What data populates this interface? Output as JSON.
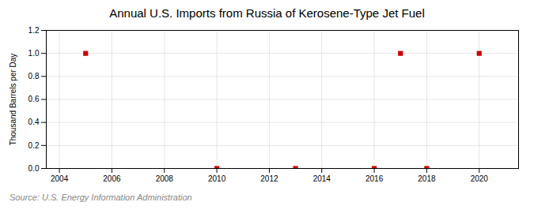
{
  "chart_data": {
    "type": "scatter",
    "title": "Annual U.S. Imports from Russia of Kerosene-Type Jet Fuel",
    "ylabel": "Thousand Barrels per Day",
    "annotation": "Source: U.S. Energy Information Administration",
    "x": [
      2005,
      2010,
      2013,
      2016,
      2017,
      2018,
      2020
    ],
    "values": [
      1.0,
      0.0,
      0.0,
      0.0,
      1.0,
      0.0,
      1.0
    ],
    "color": "#cc0000",
    "marker": "square",
    "xlim": [
      2003.5,
      2021.5
    ],
    "xticks": [
      2004,
      2006,
      2008,
      2010,
      2012,
      2014,
      2016,
      2018,
      2020
    ],
    "ylim": [
      0.0,
      1.2
    ],
    "yticks": [
      {
        "value": 0.0,
        "label": "0.0"
      },
      0.2,
      0.4,
      0.6,
      0.8,
      {
        "value": 1.0,
        "label": "1.0"
      },
      1.2
    ],
    "grid": true
  }
}
